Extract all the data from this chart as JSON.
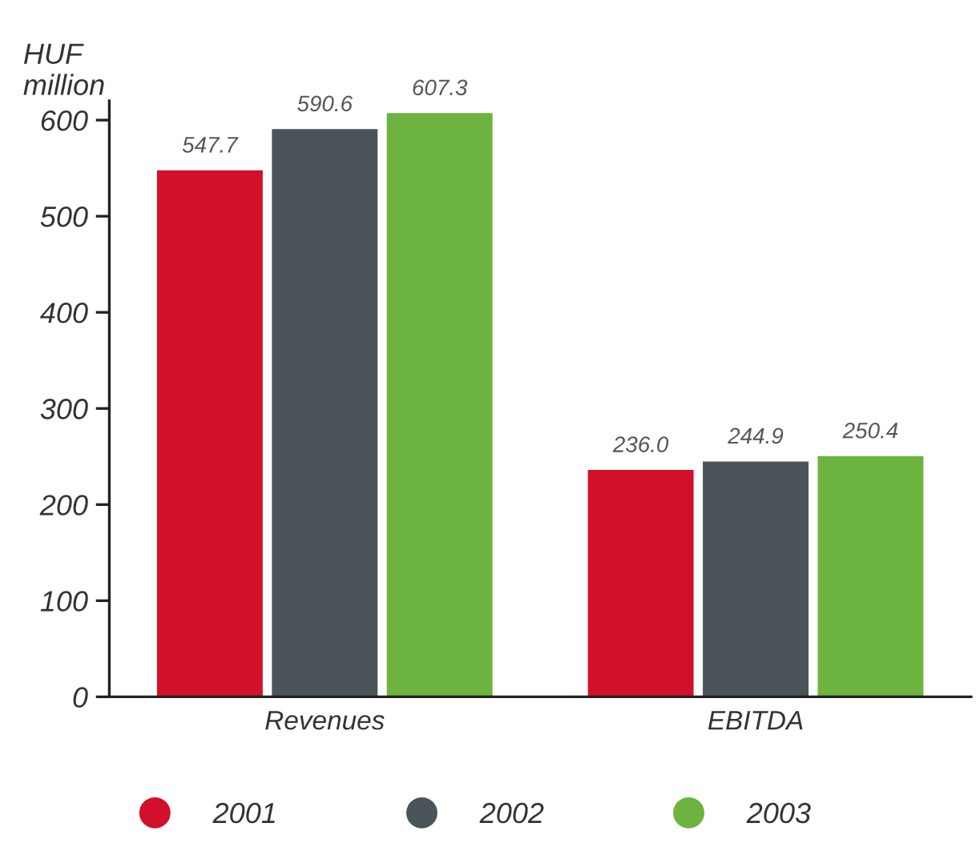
{
  "chart_data": {
    "type": "bar",
    "ylabel": "HUF\nmillion",
    "categories": [
      "Revenues",
      "EBITDA"
    ],
    "series": [
      {
        "name": "2001",
        "color": "#d2102a",
        "values": [
          547.7,
          236.0
        ],
        "value_labels": [
          "547.7",
          "236.0"
        ]
      },
      {
        "name": "2002",
        "color": "#4a5459",
        "values": [
          590.6,
          244.9
        ],
        "value_labels": [
          "590.6",
          "244.9"
        ]
      },
      {
        "name": "2003",
        "color": "#6db33f",
        "values": [
          607.3,
          250.4
        ],
        "value_labels": [
          "607.3",
          "250.4"
        ]
      }
    ],
    "ylim": [
      0,
      620
    ],
    "yticks": [
      0,
      100,
      200,
      300,
      400,
      500,
      600
    ],
    "grid": false,
    "legend": "bottom",
    "marker": "circle"
  }
}
